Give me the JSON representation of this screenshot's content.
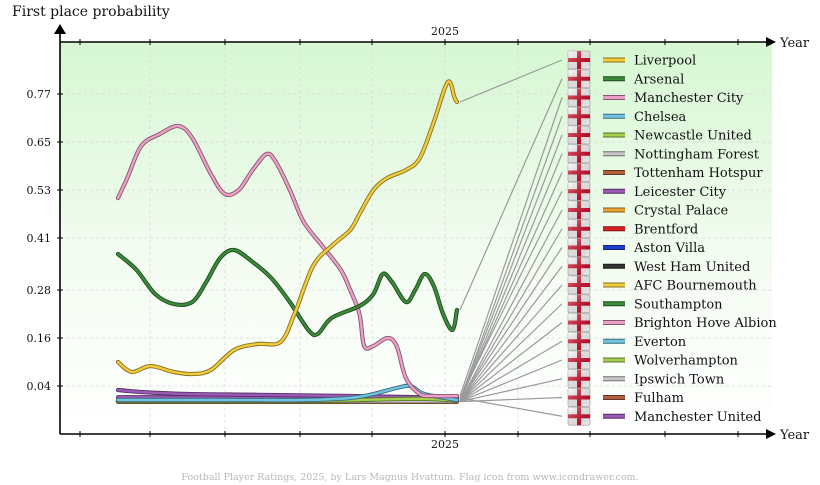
{
  "chart_data": {
    "type": "line",
    "title": "First place probability",
    "xlabel": "Year",
    "x_tick_label": "2025",
    "y_ticks": [
      0.04,
      0.16,
      0.28,
      0.41,
      0.53,
      0.65,
      0.77
    ],
    "ylim": [
      -0.08,
      0.9
    ],
    "grid": true,
    "legend_position": "right",
    "footer": "Football Player Ratings, 2025, by Lars Magnus Hvattum. Flag icon from www.icondrawer.com.",
    "series": [
      {
        "name": "Liverpool",
        "color": "#f2cc3a",
        "points": [
          [
            0,
            0.1
          ],
          [
            3,
            0.075
          ],
          [
            7,
            0.09
          ],
          [
            12,
            0.075
          ],
          [
            16,
            0.07
          ],
          [
            20,
            0.08
          ],
          [
            25,
            0.13
          ],
          [
            30,
            0.145
          ],
          [
            35,
            0.15
          ],
          [
            38,
            0.22
          ],
          [
            42,
            0.34
          ],
          [
            46,
            0.39
          ],
          [
            50,
            0.43
          ],
          [
            52,
            0.47
          ],
          [
            55,
            0.53
          ],
          [
            58,
            0.56
          ],
          [
            62,
            0.58
          ],
          [
            65,
            0.61
          ],
          [
            68,
            0.7
          ],
          [
            71,
            0.8
          ],
          [
            72.5,
            0.76
          ],
          [
            73,
            0.75
          ]
        ]
      },
      {
        "name": "Arsenal",
        "color": "#3b8a3a",
        "points": [
          [
            0,
            0.37
          ],
          [
            4,
            0.33
          ],
          [
            8,
            0.27
          ],
          [
            12,
            0.245
          ],
          [
            16,
            0.25
          ],
          [
            19,
            0.3
          ],
          [
            22,
            0.36
          ],
          [
            25,
            0.38
          ],
          [
            29,
            0.35
          ],
          [
            33,
            0.31
          ],
          [
            37,
            0.25
          ],
          [
            41,
            0.18
          ],
          [
            43,
            0.17
          ],
          [
            46,
            0.21
          ],
          [
            52,
            0.24
          ],
          [
            55,
            0.27
          ],
          [
            57,
            0.32
          ],
          [
            59,
            0.3
          ],
          [
            62,
            0.25
          ],
          [
            64,
            0.28
          ],
          [
            66,
            0.32
          ],
          [
            68,
            0.29
          ],
          [
            70,
            0.22
          ],
          [
            72,
            0.18
          ],
          [
            73,
            0.23
          ]
        ]
      },
      {
        "name": "Manchester City",
        "color": "#ee9fc7",
        "points": [
          [
            0,
            0.51
          ],
          [
            2,
            0.56
          ],
          [
            5,
            0.64
          ],
          [
            9,
            0.67
          ],
          [
            13,
            0.69
          ],
          [
            16,
            0.66
          ],
          [
            20,
            0.57
          ],
          [
            23,
            0.52
          ],
          [
            26,
            0.53
          ],
          [
            29,
            0.58
          ],
          [
            32,
            0.62
          ],
          [
            34,
            0.6
          ],
          [
            37,
            0.53
          ],
          [
            40,
            0.45
          ],
          [
            44,
            0.39
          ],
          [
            48,
            0.33
          ],
          [
            50,
            0.28
          ],
          [
            52,
            0.22
          ],
          [
            53,
            0.14
          ],
          [
            55,
            0.14
          ],
          [
            58,
            0.16
          ],
          [
            60,
            0.14
          ],
          [
            62,
            0.06
          ],
          [
            65,
            0.02
          ],
          [
            68,
            0.015
          ],
          [
            73,
            0.015
          ]
        ]
      },
      {
        "name": "Chelsea",
        "color": "#6fc4e2",
        "points": [
          [
            0,
            0.005
          ],
          [
            20,
            0.005
          ],
          [
            40,
            0.005
          ],
          [
            50,
            0.01
          ],
          [
            55,
            0.02
          ],
          [
            60,
            0.035
          ],
          [
            63,
            0.04
          ],
          [
            66,
            0.02
          ],
          [
            73,
            0.005
          ]
        ]
      },
      {
        "name": "Newcastle United",
        "color": "#a6cf4f",
        "points": [
          [
            0,
            0.003
          ],
          [
            40,
            0.003
          ],
          [
            55,
            0.006
          ],
          [
            65,
            0.008
          ],
          [
            73,
            0.004
          ]
        ]
      },
      {
        "name": "Nottingham Forest",
        "color": "#c9c9c9",
        "points": [
          [
            0,
            0.002
          ],
          [
            73,
            0.002
          ]
        ]
      },
      {
        "name": "Tottenham Hotspur",
        "color": "#b35e3a",
        "points": [
          [
            0,
            0.004
          ],
          [
            73,
            0.003
          ]
        ]
      },
      {
        "name": "Leicester City",
        "color": "#9b59b6",
        "points": [
          [
            0,
            0.03
          ],
          [
            5,
            0.025
          ],
          [
            15,
            0.02
          ],
          [
            30,
            0.018
          ],
          [
            50,
            0.015
          ],
          [
            73,
            0.01
          ]
        ]
      },
      {
        "name": "Crystal Palace",
        "color": "#f0a030",
        "points": [
          [
            0,
            0.001
          ],
          [
            73,
            0.001
          ]
        ]
      },
      {
        "name": "Brentford",
        "color": "#e02020",
        "points": [
          [
            0,
            0.001
          ],
          [
            73,
            0.001
          ]
        ]
      },
      {
        "name": "Aston Villa",
        "color": "#1e3ed0",
        "points": [
          [
            0,
            0.002
          ],
          [
            73,
            0.002
          ]
        ]
      },
      {
        "name": "West Ham United",
        "color": "#333333",
        "points": [
          [
            0,
            0.001
          ],
          [
            73,
            0.001
          ]
        ]
      },
      {
        "name": "AFC Bournemouth",
        "color": "#f2cc3a",
        "points": [
          [
            0,
            0.001
          ],
          [
            73,
            0.001
          ]
        ]
      },
      {
        "name": "Southampton",
        "color": "#3b8a3a",
        "points": [
          [
            0,
            0.001
          ],
          [
            73,
            0.001
          ]
        ]
      },
      {
        "name": "Brighton Hove Albion",
        "color": "#ee9fc7",
        "points": [
          [
            0,
            0.001
          ],
          [
            73,
            0.001
          ]
        ]
      },
      {
        "name": "Everton",
        "color": "#6fc4e2",
        "points": [
          [
            0,
            0.001
          ],
          [
            73,
            0.001
          ]
        ]
      },
      {
        "name": "Wolverhampton",
        "color": "#a6cf4f",
        "points": [
          [
            0,
            0.001
          ],
          [
            73,
            0.001
          ]
        ]
      },
      {
        "name": "Ipswich Town",
        "color": "#c9c9c9",
        "points": [
          [
            0,
            0.001
          ],
          [
            73,
            0.001
          ]
        ]
      },
      {
        "name": "Fulham",
        "color": "#b35e3a",
        "points": [
          [
            0,
            0.001
          ],
          [
            73,
            0.001
          ]
        ]
      },
      {
        "name": "Manchester United",
        "color": "#9b59b6",
        "points": [
          [
            0,
            0.012
          ],
          [
            73,
            0.01
          ]
        ]
      }
    ]
  }
}
